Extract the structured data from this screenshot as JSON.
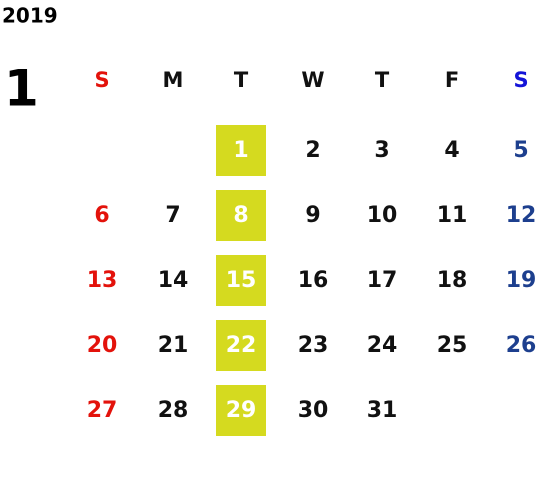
{
  "year": "2019",
  "month": "1",
  "weekdays": [
    "S",
    "M",
    "T",
    "W",
    "T",
    "F",
    "S"
  ],
  "weeks": [
    [
      null,
      null,
      1,
      2,
      3,
      4,
      5
    ],
    [
      6,
      7,
      8,
      9,
      10,
      11,
      12
    ],
    [
      13,
      14,
      15,
      16,
      17,
      18,
      19
    ],
    [
      20,
      21,
      22,
      23,
      24,
      25,
      26
    ],
    [
      27,
      28,
      29,
      30,
      31,
      null,
      null
    ]
  ]
}
